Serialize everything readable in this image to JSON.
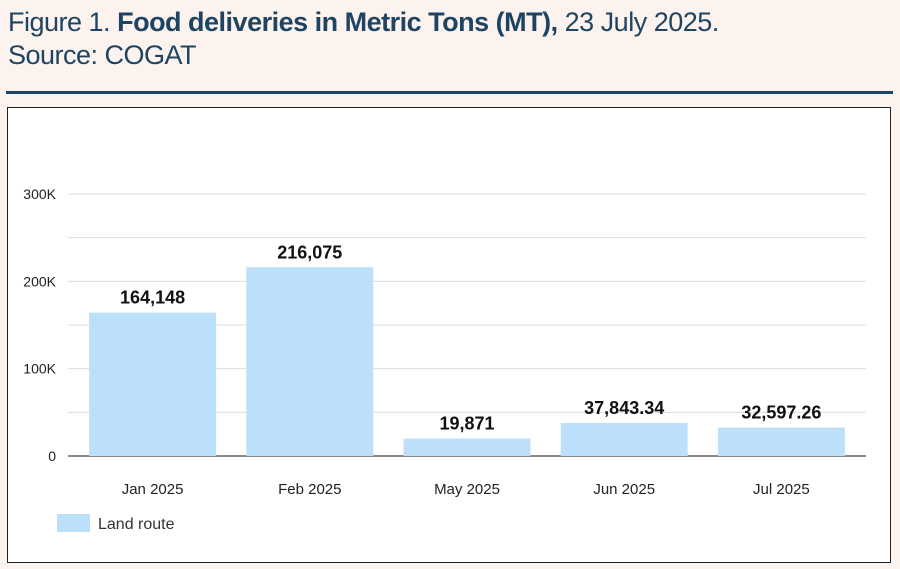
{
  "header": {
    "figure_label": "Figure 1.",
    "title": "Food deliveries in Metric Tons (MT),",
    "date": "23 July 2025.",
    "source": "Source:  COGAT"
  },
  "colors": {
    "bar": "#bde0fa",
    "header_text": "#1e4463",
    "grid": "#dddddd"
  },
  "chart_data": {
    "type": "bar",
    "title": "Food deliveries in Metric Tons (MT), 23 July 2025.",
    "categories": [
      "Jan 2025",
      "Feb 2025",
      "May 2025",
      "Jun 2025",
      "Jul 2025"
    ],
    "series": [
      {
        "name": "Land route",
        "values": [
          164148,
          216075,
          19871,
          37843.34,
          32597.26
        ],
        "labels": [
          "164,148",
          "216,075",
          "19,871",
          "37,843.34",
          "32,597.26"
        ]
      }
    ],
    "ylim": [
      0,
      300000
    ],
    "yticks": [
      0,
      100000,
      200000,
      300000
    ],
    "ytick_labels": [
      "0",
      "100K",
      "200K",
      "300K"
    ],
    "grid": true,
    "legend": "bottom-left"
  }
}
